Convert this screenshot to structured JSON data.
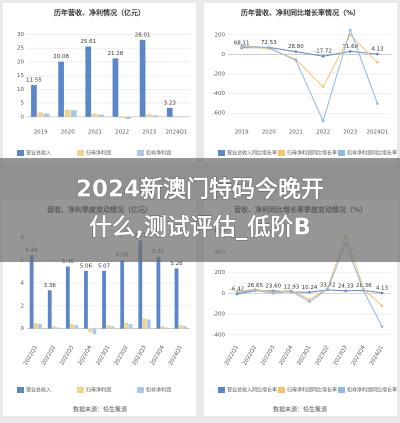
{
  "chart_data": [
    {
      "type": "bar",
      "title": "历年营收、净利情况（亿元）",
      "categories": [
        "2019",
        "2020",
        "2021",
        "2022",
        "2023",
        "2024Q1"
      ],
      "series": [
        {
          "name": "营业总收入",
          "color": "#5b86c9",
          "values": [
            11.55,
            20.08,
            25.61,
            21.28,
            28.01,
            3.23
          ]
        },
        {
          "name": "归母净利润",
          "color": "#f2d38a",
          "values": [
            1.6,
            2.6,
            1.2,
            -0.4,
            0.9,
            0.3
          ]
        },
        {
          "name": "扣非净利润",
          "color": "#a8c8e6",
          "values": [
            1.2,
            2.4,
            0.8,
            -0.8,
            0.5,
            0.2
          ]
        }
      ],
      "ylim": [
        -3,
        32
      ],
      "yticks": [
        0,
        5,
        10,
        15,
        20,
        25,
        30
      ]
    },
    {
      "type": "line",
      "title": "历年营收、净利同比增长率情况（%）",
      "categories": [
        "2019",
        "2020",
        "2021",
        "2022",
        "2023",
        "2024Q1"
      ],
      "series": [
        {
          "name": "营业总收入同比增长率",
          "color": "#5b86c9",
          "values": [
            68.11,
            72.53,
            28.8,
            -17.72,
            31.6,
            4.13
          ],
          "value_labels": [
            "68.11",
            "72.53",
            "28.80",
            "-17.72",
            "31.60",
            "4.13"
          ]
        },
        {
          "name": "归母净利润同比增长率",
          "color": "#f2c36a",
          "values": [
            80,
            60,
            -50,
            -330,
            200,
            -80
          ]
        },
        {
          "name": "扣非净利润同比增长率",
          "color": "#8fb8e0",
          "values": [
            90,
            70,
            -60,
            -680,
            250,
            -500
          ]
        }
      ],
      "ylim": [
        -720,
        260
      ],
      "yticks": [
        -600,
        -400,
        -200,
        0,
        200
      ]
    },
    {
      "type": "bar",
      "title": "营收、净利季度变动情况（亿元）",
      "categories": [
        "2022Q1",
        "2022Q2",
        "2022Q3",
        "2022Q4",
        "2023Q1",
        "2023Q2",
        "2023Q3",
        "2023Q4",
        "2024Q1"
      ],
      "series": [
        {
          "name": "营业总收入",
          "color": "#5b86c9",
          "values": [
            6.44,
            3.36,
            5.45,
            5.06,
            5.07,
            6.0,
            7.73,
            6.31,
            5.28
          ],
          "value_labels": [
            "6.44",
            "3.36",
            "5.45",
            "5.06",
            "5.07",
            "6.00",
            "7.73",
            "6.31",
            "5.28"
          ]
        },
        {
          "name": "归母净利润",
          "color": "#f2d38a",
          "values": [
            0.5,
            0.2,
            0.4,
            -0.3,
            0.3,
            0.5,
            0.9,
            0.2,
            0.3
          ]
        },
        {
          "name": "扣非净利润",
          "color": "#a8c8e6",
          "values": [
            0.4,
            0.1,
            0.3,
            -0.5,
            0.2,
            0.4,
            0.8,
            0.1,
            0.2
          ]
        }
      ],
      "ylim": [
        -1,
        9
      ],
      "yticks": [
        0,
        2,
        4,
        6,
        8
      ]
    },
    {
      "type": "line",
      "title": "营收、净利同比增长率季度变动情况（%）",
      "categories": [
        "2022Q1",
        "2022Q2",
        "2022Q3",
        "2022Q4",
        "2023Q1",
        "2023Q2",
        "2023Q3",
        "2023Q4",
        "2024Q1"
      ],
      "series": [
        {
          "name": "营业总收入同比增长率",
          "color": "#5b86c9",
          "values": [
            -6.42,
            26.65,
            23.6,
            12.93,
            10.24,
            33.72,
            24.33,
            28.36,
            4.13
          ],
          "value_labels": [
            "-6.42",
            "26.65",
            "23.60",
            "12.93",
            "10.24",
            "33.72",
            "24.33",
            "28.36",
            "4.13"
          ]
        },
        {
          "name": "归母净利润同比增长率",
          "color": "#f2c36a",
          "values": [
            20,
            40,
            10,
            30,
            -60,
            50,
            560,
            40,
            -120
          ]
        },
        {
          "name": "扣非净利润同比增长率",
          "color": "#8fb8e0",
          "values": [
            10,
            30,
            0,
            20,
            -80,
            40,
            480,
            20,
            -320
          ]
        }
      ],
      "ylim": [
        -450,
        650
      ],
      "yticks": [
        -400,
        -200,
        0,
        200,
        400,
        600
      ]
    }
  ],
  "source": "数据来源：恒生聚源",
  "banner": [
    "2024新澳门特码今晚开",
    "什么,测试评估_低阶B"
  ]
}
